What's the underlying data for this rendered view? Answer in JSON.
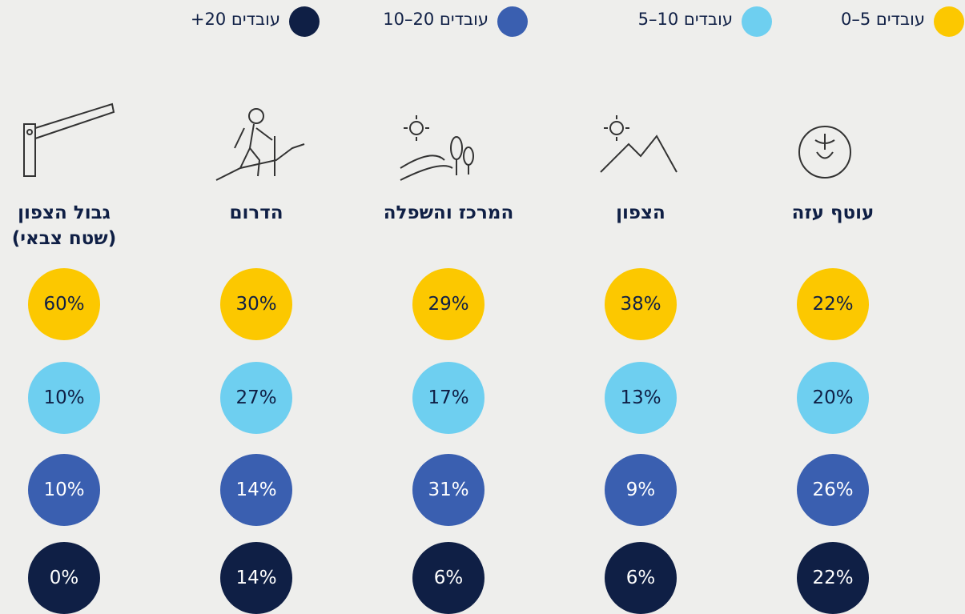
{
  "chart_data": {
    "type": "dot-grid",
    "categories": [
      "עוטף עזה",
      "הצפון",
      "המרכז והשפלה",
      "הדרום",
      "גבול הצפון (שטח צבאי)"
    ],
    "series": [
      {
        "name": "0–5 עובדים",
        "color": "#fcc800",
        "values": [
          22,
          38,
          29,
          30,
          60
        ],
        "value_labels": [
          "22%",
          "38%",
          "29%",
          "30%",
          "60%"
        ]
      },
      {
        "name": "5–10 עובדים",
        "color": "#6ecff0",
        "values": [
          20,
          13,
          17,
          27,
          10
        ],
        "value_labels": [
          "20%",
          "13%",
          "17%",
          "27%",
          "10%"
        ]
      },
      {
        "name": "10–20 עובדים",
        "color": "#3a5fb0",
        "values": [
          26,
          9,
          31,
          14,
          10
        ],
        "value_labels": [
          "26%",
          "9%",
          "31%",
          "14%",
          "10%"
        ]
      },
      {
        "name": "+20 עובדים",
        "color": "#0f1f45",
        "values": [
          22,
          6,
          6,
          14,
          0
        ],
        "value_labels": [
          "22%",
          "6%",
          "6%",
          "14%",
          "0%"
        ]
      }
    ]
  }
}
